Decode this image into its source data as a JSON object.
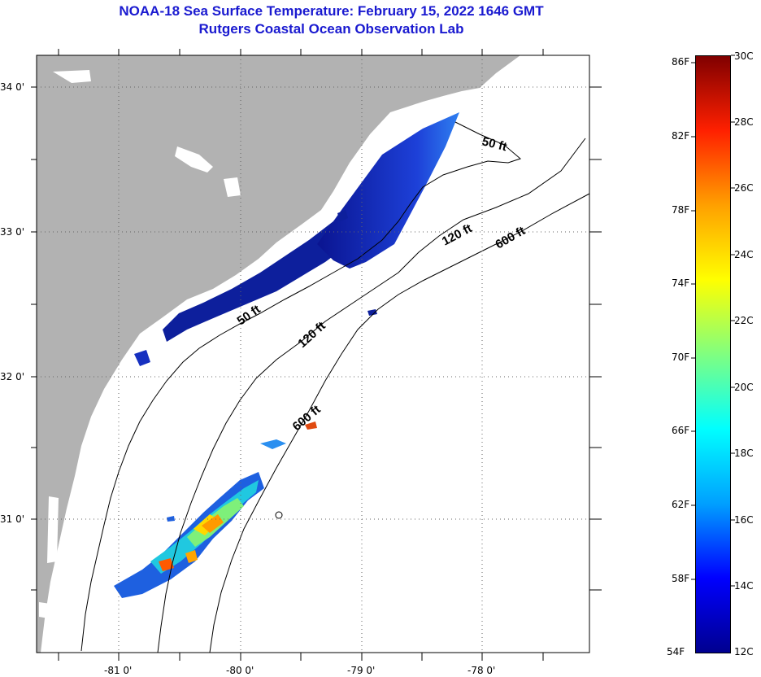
{
  "title": {
    "line1": "NOAA-18 Sea Surface Temperature:  February 15, 2022 1646 GMT",
    "line2": "Rutgers Coastal Ocean Observation Lab"
  },
  "map": {
    "lat_labels": [
      "34 0'",
      "33 0'",
      "32 0'",
      "31 0'"
    ],
    "lon_labels": [
      "-81 0'",
      "-80 0'",
      "-79 0'",
      "-78 0'"
    ],
    "contour_labels": [
      "50 ft",
      "120 ft",
      "600 ft",
      "50 ft",
      "120 ft",
      "600 ft"
    ],
    "colors": {
      "land": "#b2b2b2",
      "ocean_nodata": "#ffffff",
      "nearshore_sst": "#0d1f9c"
    }
  },
  "colorbar": {
    "fahrenheit_labels": [
      "86F",
      "82F",
      "78F",
      "74F",
      "70F",
      "66F",
      "62F",
      "58F",
      "54F"
    ],
    "celsius_labels": [
      "30C",
      "28C",
      "26C",
      "24C",
      "22C",
      "20C",
      "18C",
      "16C",
      "14C",
      "12C"
    ],
    "colors": [
      "#00008f",
      "#0000ff",
      "#00a0ff",
      "#00ffff",
      "#80ff80",
      "#ffff00",
      "#ffa000",
      "#ff2000",
      "#800000"
    ]
  }
}
